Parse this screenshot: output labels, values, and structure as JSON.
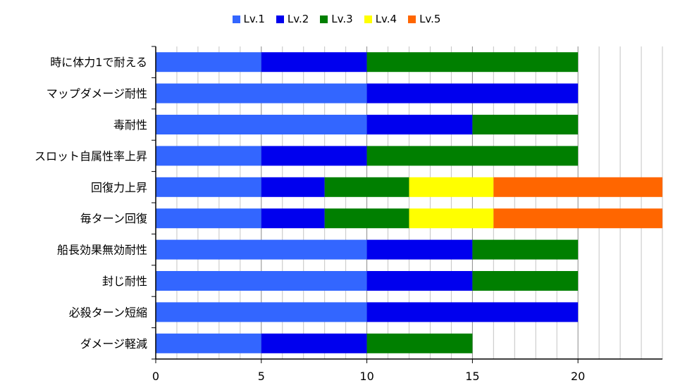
{
  "chart_data": {
    "type": "bar",
    "orientation": "horizontal",
    "stacked": true,
    "title": "",
    "xlabel": "",
    "ylabel": "",
    "xlim": [
      0,
      24
    ],
    "x_ticks": [
      0,
      5,
      10,
      15,
      20
    ],
    "grid": "vertical",
    "legend_position": "top",
    "categories": [
      "時に体力1で耐える",
      "マップダメージ耐性",
      "毒耐性",
      "スロット自属性率上昇",
      "回復力上昇",
      "毎ターン回復",
      "船長効果無効耐性",
      "封じ耐性",
      "必殺ターン短縮",
      "ダメージ軽減"
    ],
    "series": [
      {
        "name": "Lv.1",
        "color": "#3366ff",
        "values": [
          5,
          10,
          10,
          5,
          5,
          5,
          10,
          10,
          10,
          5
        ]
      },
      {
        "name": "Lv.2",
        "color": "#0000ee",
        "values": [
          5,
          10,
          5,
          5,
          3,
          3,
          5,
          5,
          10,
          5
        ]
      },
      {
        "name": "Lv.3",
        "color": "#007f00",
        "values": [
          10,
          0,
          5,
          10,
          4,
          4,
          5,
          5,
          0,
          5
        ]
      },
      {
        "name": "Lv.4",
        "color": "#ffff00",
        "values": [
          0,
          0,
          0,
          0,
          4,
          4,
          0,
          0,
          0,
          0
        ]
      },
      {
        "name": "Lv.5",
        "color": "#ff6600",
        "values": [
          0,
          0,
          0,
          0,
          8,
          8,
          0,
          0,
          0,
          0
        ]
      }
    ]
  }
}
